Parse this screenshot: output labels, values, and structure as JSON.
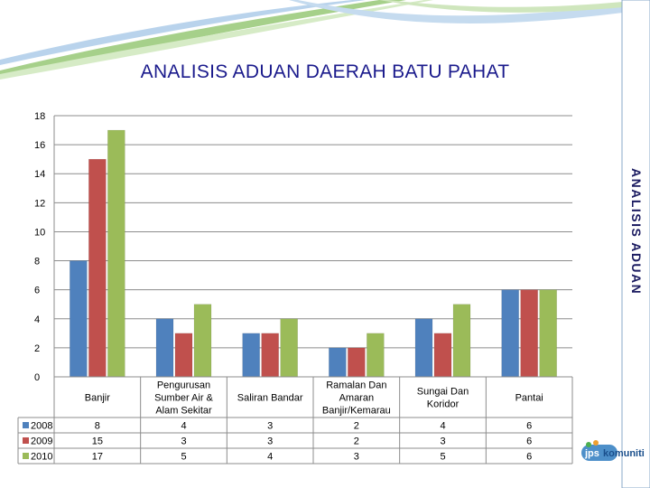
{
  "title": "ANALISIS ADUAN DAERAH BATU PAHAT",
  "side_label": "ANALISIS ADUAN",
  "logo_text": "jps komuniti",
  "colors": {
    "2008": "#4f81bd",
    "2009": "#c0504d",
    "2010": "#9bbb59",
    "title": "#1a1a8c"
  },
  "chart_data": {
    "type": "bar",
    "title": "",
    "xlabel": "",
    "ylabel": "",
    "ylim": [
      0,
      18
    ],
    "yticks": [
      0,
      2,
      4,
      6,
      8,
      10,
      12,
      14,
      16,
      18
    ],
    "grid": true,
    "legend": "left, inside data table",
    "categories": [
      [
        "Banjir"
      ],
      [
        "Pengurusan",
        "Sumber Air &",
        "Alam Sekitar"
      ],
      [
        "Saliran Bandar"
      ],
      [
        "Ramalan Dan",
        "Amaran",
        "Banjir/Kemarau"
      ],
      [
        "Sungai Dan",
        "Koridor"
      ],
      [
        "Pantai"
      ]
    ],
    "series": [
      {
        "name": "2008",
        "values": [
          8,
          4,
          3,
          2,
          4,
          6
        ]
      },
      {
        "name": "2009",
        "values": [
          15,
          3,
          3,
          2,
          3,
          6
        ]
      },
      {
        "name": "2010",
        "values": [
          17,
          5,
          4,
          3,
          5,
          6
        ]
      }
    ]
  }
}
